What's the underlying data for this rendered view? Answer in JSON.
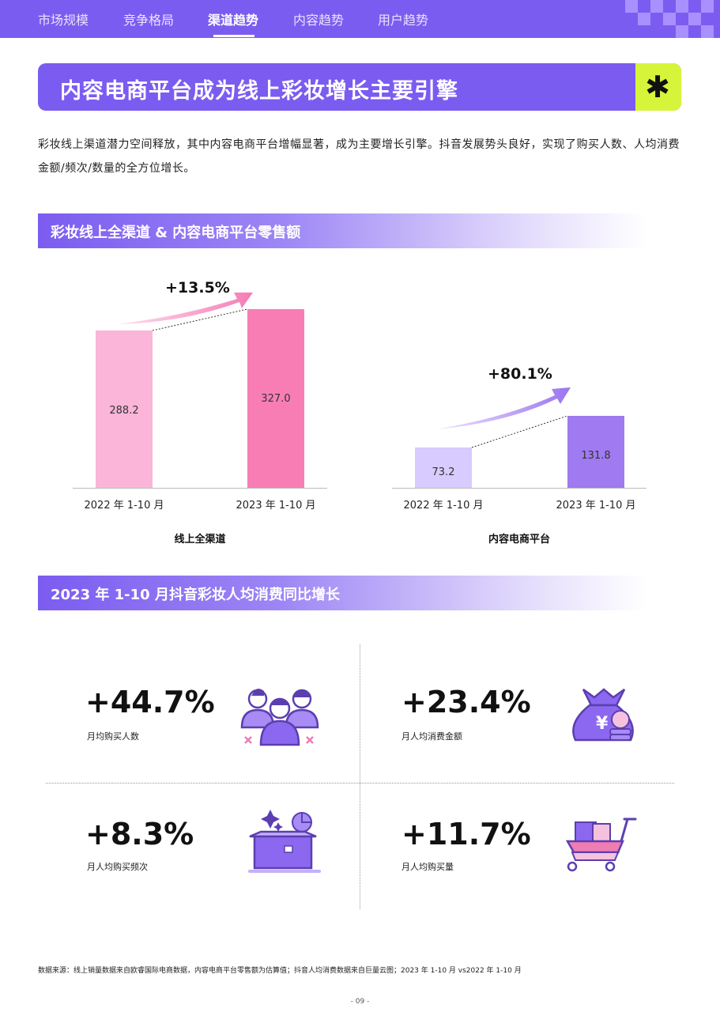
{
  "nav": {
    "tabs": [
      {
        "label": "市场规模"
      },
      {
        "label": "竞争格局"
      },
      {
        "label": "渠道趋势"
      },
      {
        "label": "内容趋势"
      },
      {
        "label": "用户趋势"
      }
    ],
    "active_tab": "渠道趋势"
  },
  "banner": {
    "title": "内容电商平台成为线上彩妆增长主要引擎",
    "icon": "asterisk-icon"
  },
  "intro": "彩妆线上渠道潜力空间释放，其中内容电商平台增幅显著，成为主要增长引擎。抖音发展势头良好，实现了购买人数、人均消费金额/频次/数量的全方位增长。",
  "section1": {
    "title": "彩妆线上全渠道 & 内容电商平台零售额"
  },
  "chart_data": [
    {
      "type": "bar",
      "categories": [
        "2022 年 1-10 月",
        "2023 年 1-10 月"
      ],
      "values": [
        288.2,
        327.0
      ],
      "value_labels": [
        "288.2",
        "327.0"
      ],
      "group_label": "线上全渠道",
      "growth": "+13.5%",
      "colors": [
        "#fbb5d8",
        "#f97db5"
      ]
    },
    {
      "type": "bar",
      "categories": [
        "2022 年 1-10 月",
        "2023 年 1-10 月"
      ],
      "values": [
        73.2,
        131.8
      ],
      "value_labels": [
        "73.2",
        "131.8"
      ],
      "group_label": "内容电商平台",
      "growth": "+80.1%",
      "colors": [
        "#d8cbff",
        "#a07af0"
      ]
    }
  ],
  "section2": {
    "title": "2023 年 1-10 月抖音彩妆人均消费同比增长"
  },
  "stats": [
    {
      "value": "+44.7%",
      "label": "月均购买人数",
      "icon": "people-icon"
    },
    {
      "value": "+23.4%",
      "label": "月人均消费金额",
      "icon": "money-bag-icon"
    },
    {
      "value": "+8.3%",
      "label": "月人均购买频次",
      "icon": "box-icon"
    },
    {
      "value": "+11.7%",
      "label": "月人均购买量",
      "icon": "shopping-cart-icon"
    }
  ],
  "footer": {
    "source": "数据来源：线上销量数据来自欧睿国际电商数据，内容电商平台零售额为估算值；抖音人均消费数据来自巨量云图；2023 年 1-10 月 vs2022 年 1-10 月",
    "page": "- 09 -"
  }
}
